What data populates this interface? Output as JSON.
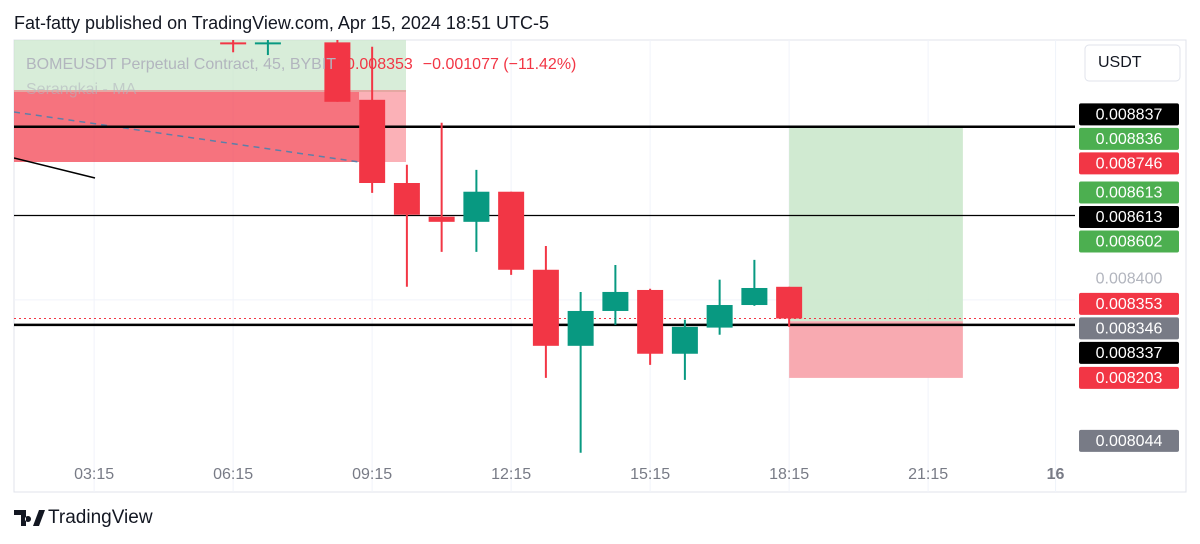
{
  "header": "Fat-fatty published on TradingView.com, Apr 15, 2024 18:51 UTC-5",
  "footer": "TradingView",
  "chart_data": {
    "type": "candlestick",
    "symbol": "BOMEUSDT Perpetual Contract, 45, BYBIT",
    "last": "0.008353",
    "change": "−0.001077 (−11.42%)",
    "indicator": "Serangkai - MA",
    "currency": "USDT",
    "x": [
      6.25,
      7.0,
      8.5,
      9.25,
      10.0,
      10.75,
      11.5,
      12.25,
      13.0,
      13.75,
      14.5,
      15.25,
      16.0,
      16.75,
      17.5,
      18.25
    ],
    "open": [
      0.00905,
      0.009045,
      0.00905,
      0.008905,
      0.008695,
      0.00861,
      0.008597,
      0.008673,
      0.008476,
      0.008284,
      0.008372,
      0.008425,
      0.008264,
      0.00833,
      0.008387,
      0.008433
    ],
    "high": [
      0.009056,
      0.009056,
      0.009056,
      0.009039,
      0.008741,
      0.008847,
      0.008728,
      0.008673,
      0.008536,
      0.00842,
      0.008488,
      0.008428,
      0.00835,
      0.008451,
      0.008501,
      0.008433
    ],
    "low": [
      0.009025,
      0.009018,
      0.0089,
      0.00867,
      0.008433,
      0.008521,
      0.008521,
      0.008463,
      0.008203,
      0.008014,
      0.008337,
      0.008236,
      0.008198,
      0.008312,
      0.008385,
      0.008332
    ],
    "close": [
      0.009045,
      0.00905,
      0.0089,
      0.008695,
      0.008615,
      0.008597,
      0.008673,
      0.008476,
      0.008284,
      0.008372,
      0.00842,
      0.008264,
      0.008332,
      0.008387,
      0.00843,
      0.008353
    ],
    "up_color": "#089981",
    "down_color": "#f23645",
    "xlim": [
      1.52,
      24.42
    ],
    "xticks": [
      {
        "value": 3.25,
        "label": "03:15"
      },
      {
        "value": 6.25,
        "label": "06:15"
      },
      {
        "value": 9.25,
        "label": "09:15"
      },
      {
        "value": 12.25,
        "label": "12:15"
      },
      {
        "value": 15.25,
        "label": "15:15"
      },
      {
        "value": 18.25,
        "label": "18:15"
      },
      {
        "value": 21.25,
        "label": "21:15"
      },
      {
        "value": 24,
        "label": "16"
      }
    ],
    "ylim": [
      0.007915,
      0.009056
    ],
    "yticks": [
      {
        "value": 0.0084,
        "label": "0.008400"
      }
    ],
    "grid": true,
    "price_labels": [
      {
        "value": 0.008837,
        "color": "#000000",
        "line": "thick"
      },
      {
        "value": 0.008836,
        "color": "#4caf50"
      },
      {
        "value": 0.008746,
        "color": "#f23645"
      },
      {
        "value": 0.008613,
        "color": "#4caf50"
      },
      {
        "value": 0.008613,
        "color": "#000000",
        "line": "thin"
      },
      {
        "value": 0.008602,
        "color": "#4caf50"
      },
      {
        "value": 0.008353,
        "color": "#f23645",
        "line": "dotted"
      },
      {
        "value": 0.008346,
        "color": "#787b86"
      },
      {
        "value": 0.008337,
        "color": "#000000",
        "line": "thick"
      },
      {
        "value": 0.008203,
        "color": "#f23645"
      },
      {
        "value": 0.008044,
        "color": "#787b86"
      }
    ],
    "position": {
      "start": 18.25,
      "end": 22.0,
      "entry": 0.008346,
      "target": 0.008836,
      "stop": 0.008203
    }
  }
}
